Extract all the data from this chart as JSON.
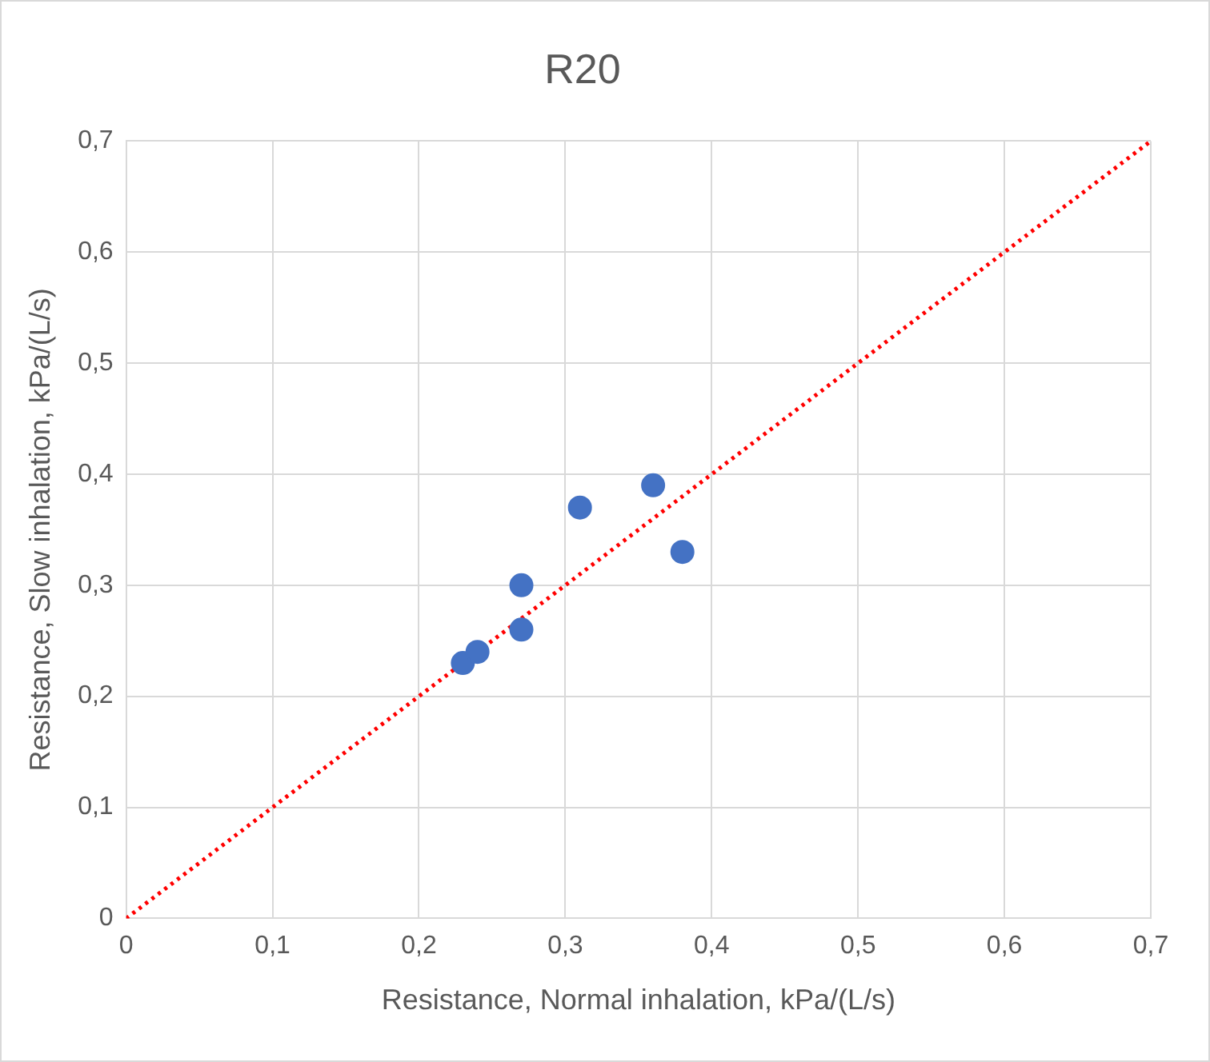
{
  "chart_data": {
    "type": "scatter",
    "title": "R20",
    "xlabel": "Resistance, Normal inhalation, kPa/(L/s)",
    "ylabel": "Resistance, Slow inhalation, kPa/(L/s)",
    "xlim": [
      0,
      0.7
    ],
    "ylim": [
      0,
      0.7
    ],
    "xticks": [
      0,
      {
        "value": 0.1,
        "label": "0,1"
      },
      {
        "value": 0.2,
        "label": "0,2"
      },
      {
        "value": 0.3,
        "label": "0,3"
      },
      {
        "value": 0.4,
        "label": "0,4"
      },
      {
        "value": 0.5,
        "label": "0,5"
      },
      {
        "value": 0.6,
        "label": "0,6"
      },
      {
        "value": 0.7,
        "label": "0,7"
      }
    ],
    "yticks": [
      0,
      {
        "value": 0.1,
        "label": "0,1"
      },
      {
        "value": 0.2,
        "label": "0,2"
      },
      {
        "value": 0.3,
        "label": "0,3"
      },
      {
        "value": 0.4,
        "label": "0,4"
      },
      {
        "value": 0.5,
        "label": "0,5"
      },
      {
        "value": 0.6,
        "label": "0,6"
      },
      {
        "value": 0.7,
        "label": "0,7"
      }
    ],
    "grid": true,
    "legend": false,
    "marker": "circle",
    "series": [
      {
        "color": "#4472c4",
        "x": [
          0.23,
          0.24,
          0.27,
          0.27,
          0.31,
          0.36,
          0.38
        ],
        "values": [
          0.23,
          0.24,
          0.26,
          0.3,
          0.37,
          0.39,
          0.33
        ]
      },
      {
        "type": "line",
        "color": "#ff0000",
        "line_style": "dotted",
        "marker": "none",
        "x": [
          0,
          0.7
        ],
        "values": [
          0,
          0.7
        ]
      }
    ]
  }
}
